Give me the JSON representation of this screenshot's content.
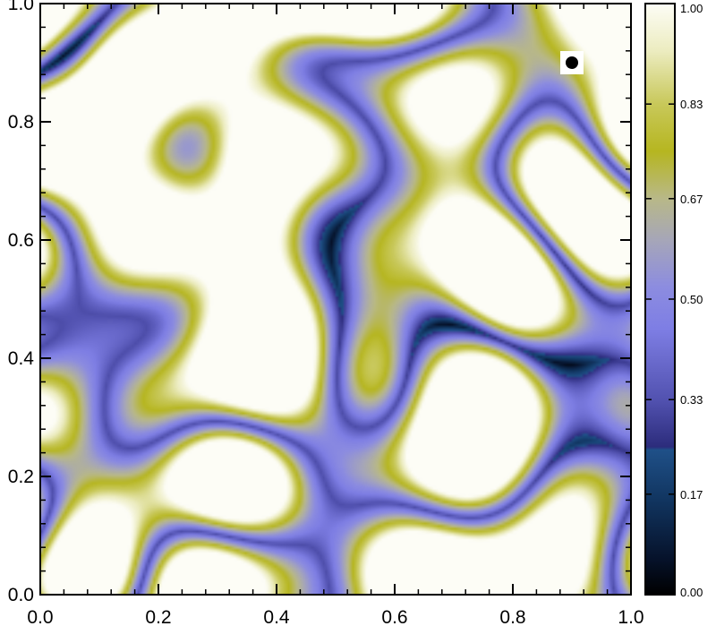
{
  "chart_data": [
    {
      "type": "heatmap",
      "title": "",
      "xlabel": "",
      "ylabel": "",
      "xlim": [
        0.0,
        1.0
      ],
      "ylim": [
        0.0,
        1.0
      ],
      "x_ticks": [
        0.0,
        0.2,
        0.4,
        0.6,
        0.8,
        1.0
      ],
      "y_ticks": [
        0.0,
        0.2,
        0.4,
        0.6,
        0.8,
        1.0
      ],
      "x_tick_labels": [
        "0.0",
        "0.2",
        "0.4",
        "0.6",
        "0.8",
        "1.0"
      ],
      "y_tick_labels": [
        "0.0",
        "0.2",
        "0.4",
        "0.6",
        "0.8",
        "1.0"
      ],
      "grid": false,
      "marker": {
        "x": 0.9,
        "y": 0.9,
        "symbol": "filled-circle",
        "color": "#000000",
        "background": "#ffffff"
      },
      "field_description_structures": "filamentary dark network running diagonally from upper-left to lower-right over a bright background",
      "value_range": [
        0.0,
        1.0
      ]
    },
    {
      "type": "colorbar",
      "range": [
        0.0,
        1.0
      ],
      "ticks": [
        0.0,
        0.17,
        0.33,
        0.5,
        0.67,
        0.83,
        1.0
      ],
      "tick_labels": [
        "0.00",
        "0.17",
        "0.33",
        "0.50",
        "0.67",
        "0.83",
        "1.00"
      ],
      "colormap_stops": [
        {
          "value": 0.0,
          "color": "#000000"
        },
        {
          "value": 0.06,
          "color": "#06122a"
        },
        {
          "value": 0.16,
          "color": "#113560"
        },
        {
          "value": 0.245,
          "color": "#1f5088"
        },
        {
          "value": 0.25,
          "color": "#2c2c7c"
        },
        {
          "value": 0.33,
          "color": "#5252b0"
        },
        {
          "value": 0.45,
          "color": "#7e7ee4"
        },
        {
          "value": 0.52,
          "color": "#8c8ce0"
        },
        {
          "value": 0.6,
          "color": "#a6a6b8"
        },
        {
          "value": 0.67,
          "color": "#b8b888"
        },
        {
          "value": 0.75,
          "color": "#b6b620"
        },
        {
          "value": 0.83,
          "color": "#c8c85a"
        },
        {
          "value": 0.92,
          "color": "#ececc0"
        },
        {
          "value": 1.0,
          "color": "#fdfdf6"
        }
      ]
    }
  ]
}
